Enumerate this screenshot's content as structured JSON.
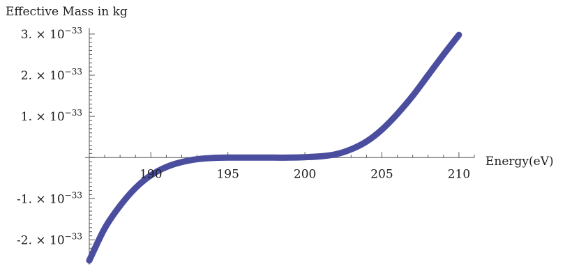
{
  "chart_data": {
    "type": "line",
    "ylabel": "Effective  Mass in kg",
    "xlabel": "Energy(eV)",
    "xlim": [
      186,
      211
    ],
    "ylim": [
      -2.6e-33,
      3.15e-33
    ],
    "x_ticks": [
      {
        "value": 190,
        "label": "190"
      },
      {
        "value": 195,
        "label": "195"
      },
      {
        "value": 200,
        "label": "200"
      },
      {
        "value": 205,
        "label": "205"
      },
      {
        "value": 210,
        "label": "210"
      }
    ],
    "y_ticks": [
      {
        "value": 3e-33,
        "mant": "3.",
        "exp": "−33"
      },
      {
        "value": 2e-33,
        "mant": "2.",
        "exp": "−33"
      },
      {
        "value": 1e-33,
        "mant": "1.",
        "exp": "−33"
      },
      {
        "value": -1e-33,
        "mant": "-1.",
        "exp": "−33"
      },
      {
        "value": -2e-33,
        "mant": "-2.",
        "exp": "−33"
      }
    ],
    "series": [
      {
        "color": "#4b4e9e",
        "x": [
          186,
          187,
          188,
          189,
          190,
          191,
          192,
          193,
          194,
          195,
          196,
          197,
          198,
          199,
          200,
          201,
          202,
          203,
          204,
          205,
          206,
          207,
          208,
          209,
          210
        ],
        "y": [
          -2.5e-33,
          -1.72e-33,
          -1.17e-33,
          -7.4e-34,
          -4.3e-34,
          -2.3e-34,
          -1.1e-34,
          -4e-35,
          -1e-35,
          0,
          0,
          0,
          0,
          0,
          1e-35,
          3e-35,
          8e-35,
          2e-34,
          3.9e-34,
          6.8e-34,
          1.06e-33,
          1.5e-33,
          2e-33,
          2.5e-33,
          2.98e-33
        ]
      }
    ]
  }
}
